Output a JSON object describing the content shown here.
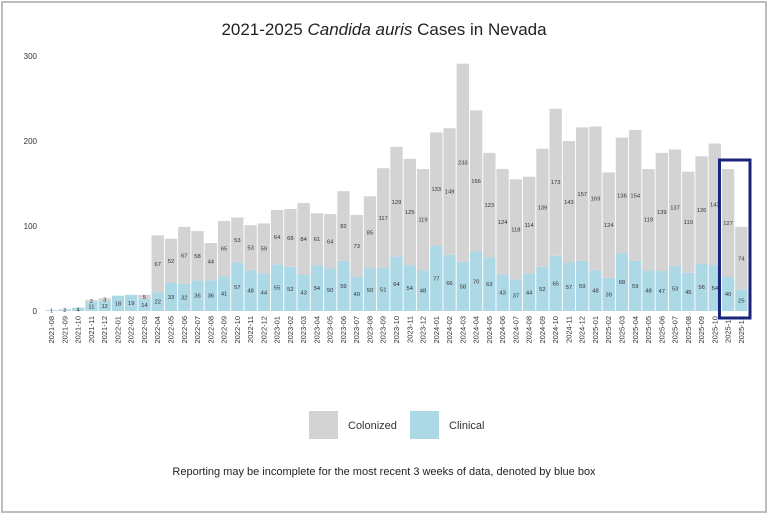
{
  "chart_data": {
    "type": "bar",
    "stacked": true,
    "title_prefix": "2021-2025 ",
    "title_italic": "Candida auris",
    "title_suffix": " Cases in Nevada",
    "xlabel": "",
    "ylabel": "",
    "ylim": [
      0,
      300
    ],
    "yticks": [
      0,
      100,
      200,
      300
    ],
    "grid": false,
    "legend_position": "bottom",
    "categories": [
      "2021-08",
      "2021-09",
      "2021-10",
      "2021-11",
      "2021-12",
      "2022-01",
      "2022-02",
      "2022-03",
      "2022-04",
      "2022-05",
      "2022-06",
      "2022-07",
      "2022-08",
      "2022-09",
      "2022-10",
      "2022-11",
      "2022-12",
      "2023-01",
      "2023-02",
      "2023-03",
      "2023-04",
      "2023-05",
      "2023-06",
      "2023-07",
      "2023-08",
      "2023-09",
      "2023-10",
      "2023-11",
      "2023-12",
      "2024-01",
      "2024-02",
      "2024-03",
      "2024-04",
      "2024-05",
      "2024-06",
      "2024-07",
      "2024-08",
      "2024-09",
      "2024-10",
      "2024-11",
      "2024-12",
      "2025-01",
      "2025-02",
      "2025-03",
      "2025-04",
      "2025-05",
      "2025-06",
      "2025-07",
      "2025-08",
      "2025-09",
      "2025-10",
      "2025-11",
      "2025-12"
    ],
    "series": [
      {
        "name": "Clinical",
        "color": "#add8e6",
        "values": [
          1,
          2,
          4,
          11,
          12,
          18,
          19,
          14,
          22,
          33,
          32,
          36,
          36,
          41,
          57,
          48,
          44,
          55,
          52,
          43,
          54,
          50,
          59,
          40,
          50,
          51,
          64,
          54,
          48,
          77,
          66,
          58,
          70,
          63,
          43,
          37,
          44,
          52,
          65,
          57,
          59,
          48,
          39,
          68,
          59,
          48,
          47,
          53,
          45,
          56,
          54,
          40,
          25
        ]
      },
      {
        "name": "Colonized",
        "color": "#d3d3d3",
        "values": [
          0,
          0,
          0,
          2,
          3,
          0,
          0,
          5,
          67,
          52,
          67,
          58,
          44,
          65,
          53,
          53,
          59,
          64,
          68,
          84,
          61,
          64,
          82,
          73,
          85,
          117,
          129,
          125,
          119,
          133,
          149,
          233,
          166,
          123,
          124,
          118,
          114,
          139,
          173,
          143,
          157,
          169,
          124,
          136,
          154,
          119,
          139,
          137,
          119,
          126,
          143,
          127,
          74
        ]
      }
    ],
    "colonized_labels": [
      "",
      "",
      "",
      "2",
      "3",
      "",
      "",
      "5",
      "67",
      "52",
      "67",
      "58",
      "44",
      "65",
      "53",
      "53",
      "59",
      "64",
      "68",
      "84",
      "61",
      "64",
      "82",
      "73",
      "85",
      "117",
      "129",
      "125",
      "119",
      "133",
      "149",
      "233",
      "166",
      "123",
      "124",
      "118",
      "114",
      "139",
      "173",
      "143",
      "157",
      "169",
      "124",
      "136",
      "154",
      "119",
      "139",
      "137",
      "119",
      "126",
      "143",
      "127",
      "74"
    ],
    "highlight": {
      "from": "2025-11",
      "to": "2025-12",
      "color": "#1a237e"
    },
    "legend": [
      {
        "label": "Colonized",
        "color": "#d3d3d3"
      },
      {
        "label": "Clinical",
        "color": "#add8e6"
      }
    ],
    "note": "Reporting may be incomplete for the most recent 3 weeks of data, denoted by blue box"
  }
}
